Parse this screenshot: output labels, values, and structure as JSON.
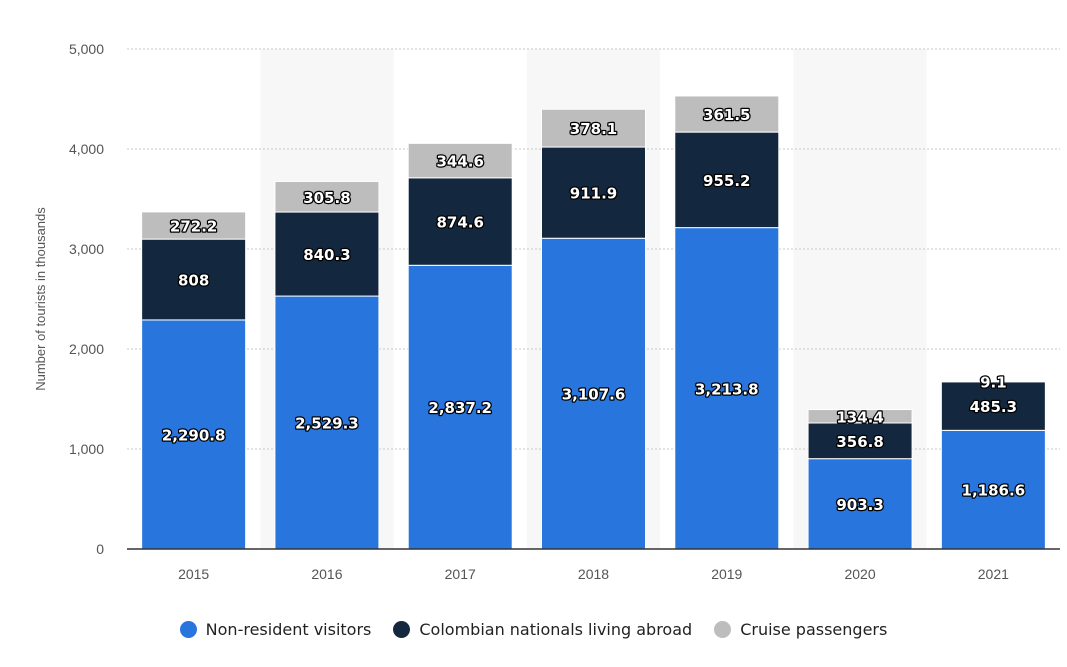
{
  "chart_data": {
    "type": "bar",
    "stacked": true,
    "categories": [
      "2015",
      "2016",
      "2017",
      "2018",
      "2019",
      "2020",
      "2021"
    ],
    "series": [
      {
        "name": "Non-resident visitors",
        "color": "#2876dd",
        "values": [
          2290.8,
          2529.3,
          2837.2,
          3107.6,
          3213.8,
          903.3,
          1186.6
        ],
        "labels": [
          "2,290.8",
          "2,529.3",
          "2,837.2",
          "3,107.6",
          "3,213.8",
          "903.3",
          "1,186.6"
        ]
      },
      {
        "name": "Colombian nationals living abroad",
        "color": "#13273f",
        "values": [
          808,
          840.3,
          874.6,
          911.9,
          955.2,
          356.8,
          485.3
        ],
        "labels": [
          "808",
          "840.3",
          "874.6",
          "911.9",
          "955.2",
          "356.8",
          "485.3"
        ]
      },
      {
        "name": "Cruise passengers",
        "color": "#bdbdbd",
        "values": [
          272.2,
          305.8,
          344.6,
          378.1,
          361.5,
          134.4,
          9.1
        ],
        "labels": [
          "272.2",
          "305.8",
          "344.6",
          "378.1",
          "361.5",
          "134.4",
          "9.1"
        ]
      }
    ],
    "ylabel": "Number of tourists in thousands",
    "ylim": [
      0,
      5000
    ],
    "yticks": [
      0,
      1000,
      2000,
      3000,
      4000,
      5000
    ],
    "ytick_labels": [
      "0",
      "1,000",
      "2,000",
      "3,000",
      "4,000",
      "5,000"
    ],
    "grid": true,
    "legend_position": "bottom"
  }
}
